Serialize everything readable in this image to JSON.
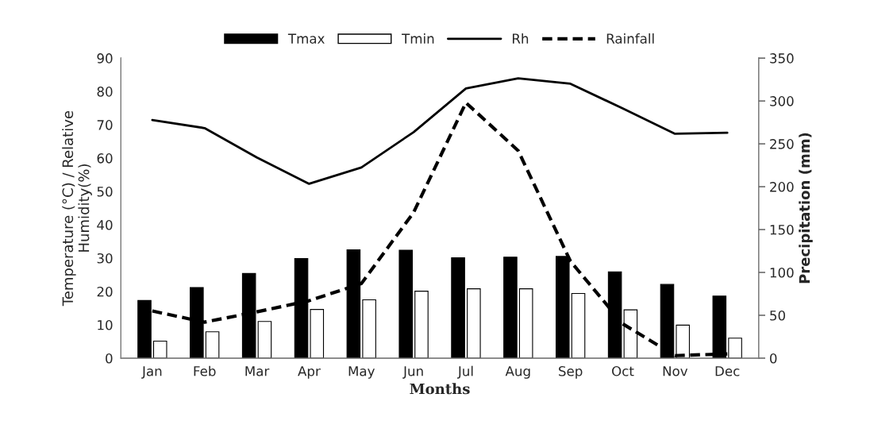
{
  "chart_data": {
    "type": "bar",
    "xlabel": "Months",
    "ylabel": "Temperature (°C) / Relative\nHumidity(%)",
    "y2label": "Precipitation (mm)",
    "categories": [
      "Jan",
      "Feb",
      "Mar",
      "Apr",
      "May",
      "Jun",
      "Jul",
      "Aug",
      "Sep",
      "Oct",
      "Nov",
      "Dec"
    ],
    "series": [
      {
        "name": "Tmax",
        "color": "#000000",
        "values": [
          17.3,
          21.2,
          25.4,
          29.9,
          32.5,
          32.4,
          30.1,
          30.3,
          30.5,
          25.9,
          22.1,
          18.6
        ]
      },
      {
        "name": "Tmin",
        "color": "#ffffff",
        "values": [
          5.1,
          7.9,
          11.0,
          14.6,
          17.5,
          20.1,
          20.8,
          20.8,
          19.4,
          14.5,
          9.9,
          6.0
        ]
      },
      {
        "name": "Rh",
        "type": "line",
        "color": "#000000",
        "line_style": "solid",
        "values": [
          71.4,
          69.0,
          60.2,
          52.3,
          57.2,
          67.8,
          80.9,
          83.9,
          82.3,
          74.9,
          67.3,
          67.6
        ]
      },
      {
        "name": "Rainfall",
        "type": "line",
        "color": "#000000",
        "line_style": "dashed",
        "axis": "y2",
        "values": [
          55,
          42,
          54,
          67,
          87,
          170,
          298,
          242,
          113,
          40,
          3,
          5
        ]
      }
    ],
    "ylim": [
      0,
      90
    ],
    "yticks": [
      0,
      10,
      20,
      30,
      40,
      50,
      60,
      70,
      80,
      90
    ],
    "y2lim": [
      0,
      350
    ],
    "y2ticks": [
      0,
      50,
      100,
      150,
      200,
      250,
      300,
      350
    ],
    "grid": false,
    "legend": "top"
  }
}
